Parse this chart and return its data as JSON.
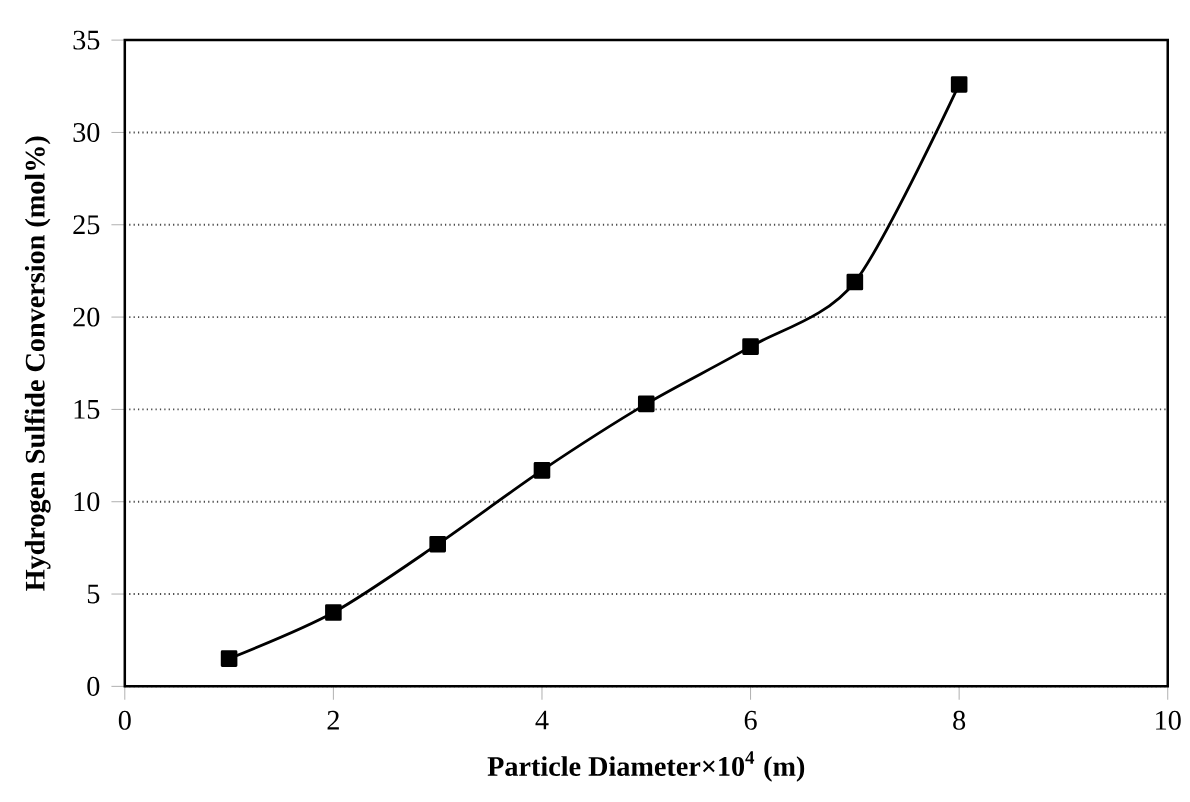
{
  "chart_data": {
    "type": "line",
    "xlabel": "Particle Diameter×10$^{4}$ (m)",
    "ylabel": "Hydrogen Sulfide Conversion (mol%)",
    "x": [
      1,
      2,
      3,
      4,
      5,
      6,
      7,
      8
    ],
    "series": [
      {
        "color": "#000000",
        "values": [
          1.5,
          4.0,
          7.7,
          11.7,
          15.3,
          18.4,
          21.9,
          32.6
        ]
      }
    ],
    "xlim": [
      0,
      10
    ],
    "xticks": [
      0,
      2,
      4,
      6,
      8,
      10
    ],
    "ylim": [
      0,
      35
    ],
    "yticks": [
      0,
      5,
      10,
      15,
      20,
      25,
      30,
      35
    ],
    "grid": "y",
    "marker": "square",
    "line_style": "solid"
  }
}
